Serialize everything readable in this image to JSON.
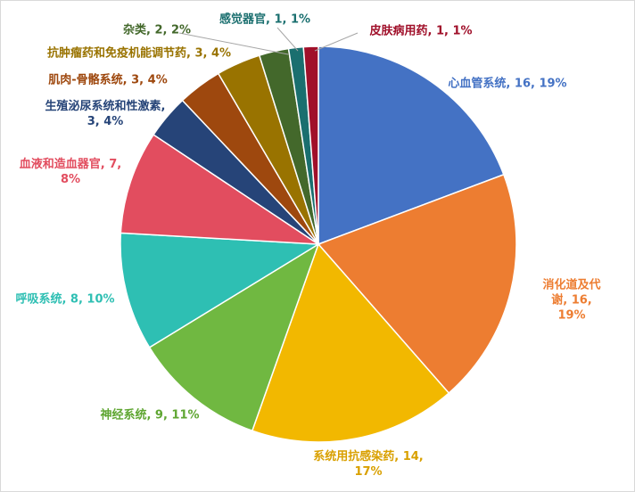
{
  "chart_data": {
    "type": "pie",
    "values": [
      16,
      16,
      14,
      9,
      8,
      7,
      3,
      3,
      3,
      2,
      1,
      1
    ],
    "data_labels": [
      "心血管系统, 16, 19%",
      "消化道及代谢, 16, 19%",
      "系统用抗感染药, 14, 17%",
      "神经系统, 9, 11%",
      "呼吸系统, 8, 10%",
      "血液和造血器官, 7, 8%",
      "生殖泌尿系统和性激素, 3, 4%",
      "肌肉-骨骼系统, 3, 4%",
      "抗肿瘤药和免疫机能调节药, 3, 4%",
      "杂类, 2, 2%",
      "感觉器官, 1, 1%",
      "皮肤病用药, 1, 1%"
    ],
    "colors": [
      "#4472c4",
      "#ed7d31",
      "#f2b800",
      "#70b841",
      "#2ebfb3",
      "#e24d5f",
      "#264478",
      "#9e480e",
      "#997300",
      "#43682b",
      "#1a6f6f",
      "#a0102a"
    ],
    "label_colors": [
      "#4472c4",
      "#ed7d31",
      "#d9a000",
      "#5fa632",
      "#2ebfb3",
      "#e24d5f",
      "#264478",
      "#9e480e",
      "#997300",
      "#43682b",
      "#1a6f6f",
      "#a0102a"
    ]
  }
}
